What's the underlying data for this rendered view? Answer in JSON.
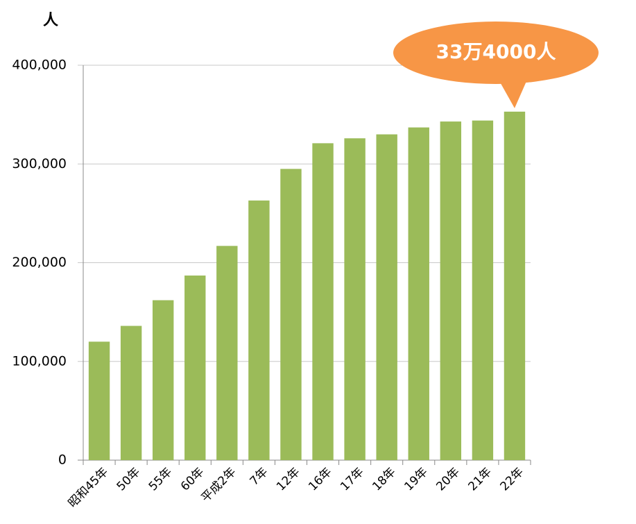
{
  "chart_data": {
    "type": "bar",
    "y_label": "人",
    "annotation": "33万4000人",
    "categories": [
      "昭和45年",
      "50年",
      "55年",
      "60年",
      "平成2年",
      "7年",
      "12年",
      "16年",
      "17年",
      "18年",
      "19年",
      "20年",
      "21年",
      "22年"
    ],
    "values": [
      120000,
      136000,
      162000,
      187000,
      217000,
      263000,
      295000,
      321000,
      326000,
      330000,
      337000,
      343000,
      344000,
      353000
    ],
    "color": "#9bbb59",
    "annotation_color": "#f79646",
    "ylim": [
      0,
      400000
    ],
    "yticks": [
      0,
      {
        "value": 100000,
        "label": "100,000"
      },
      {
        "value": 200000,
        "label": "200,000"
      },
      {
        "value": 300000,
        "label": "300,000"
      },
      {
        "value": 400000,
        "label": "400,000"
      }
    ],
    "grid": true
  }
}
